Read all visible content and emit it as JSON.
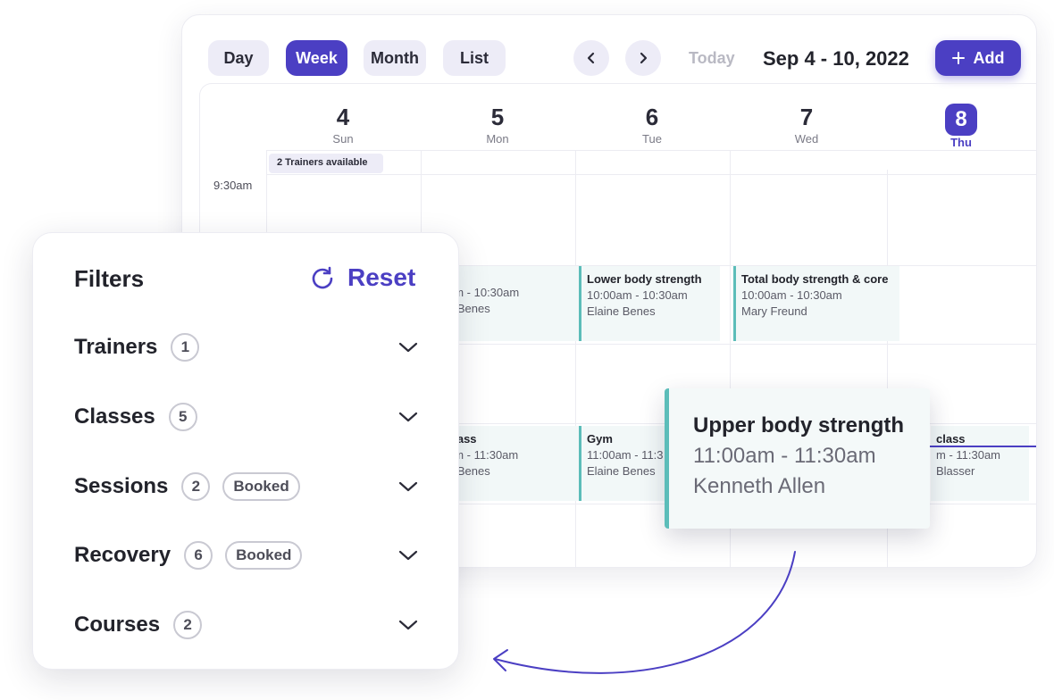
{
  "toolbar": {
    "views": [
      "Day",
      "Week",
      "Month",
      "List"
    ],
    "active_view": "Week",
    "today_label": "Today",
    "date_range": "Sep 4 - 10, 2022",
    "add_label": "Add"
  },
  "days": [
    {
      "num": "4",
      "name": "Sun"
    },
    {
      "num": "5",
      "name": "Mon"
    },
    {
      "num": "6",
      "name": "Tue"
    },
    {
      "num": "7",
      "name": "Wed"
    },
    {
      "num": "8",
      "name": "Thu",
      "today": true
    }
  ],
  "time_label": "9:30am",
  "availability": "2 Trainers available",
  "events": {
    "mon_1": {
      "title": "",
      "time": "am - 10:30am",
      "trainer": "e Benes"
    },
    "tue_1": {
      "title": "Lower body strength",
      "time": "10:00am - 10:30am",
      "trainer": "Elaine Benes"
    },
    "wed_1": {
      "title": "Total body strength  & core",
      "time": "10:00am - 10:30am",
      "trainer": "Mary Freund"
    },
    "mon_2": {
      "title": "class",
      "time": "am - 11:30am",
      "trainer": "e Benes"
    },
    "tue_2": {
      "title": "Gym",
      "time": "11:00am - 11:3",
      "trainer": "Elaine Benes"
    },
    "thu_2": {
      "title": "class",
      "time": "m - 11:30am",
      "trainer": "Blasser"
    }
  },
  "popover": {
    "title": "Upper body strength",
    "time": "11:00am - 11:30am",
    "trainer": "Kenneth Allen"
  },
  "filters": {
    "title": "Filters",
    "reset_label": "Reset",
    "rows": [
      {
        "label": "Trainers",
        "count": "1",
        "tag": ""
      },
      {
        "label": "Classes",
        "count": "5",
        "tag": ""
      },
      {
        "label": "Sessions",
        "count": "2",
        "tag": "Booked"
      },
      {
        "label": "Recovery",
        "count": "6",
        "tag": "Booked"
      },
      {
        "label": "Courses",
        "count": "2",
        "tag": ""
      }
    ]
  },
  "colors": {
    "accent": "#4b3fc3",
    "event_border": "#5cbdb9",
    "event_bg": "#f2f8f8"
  }
}
